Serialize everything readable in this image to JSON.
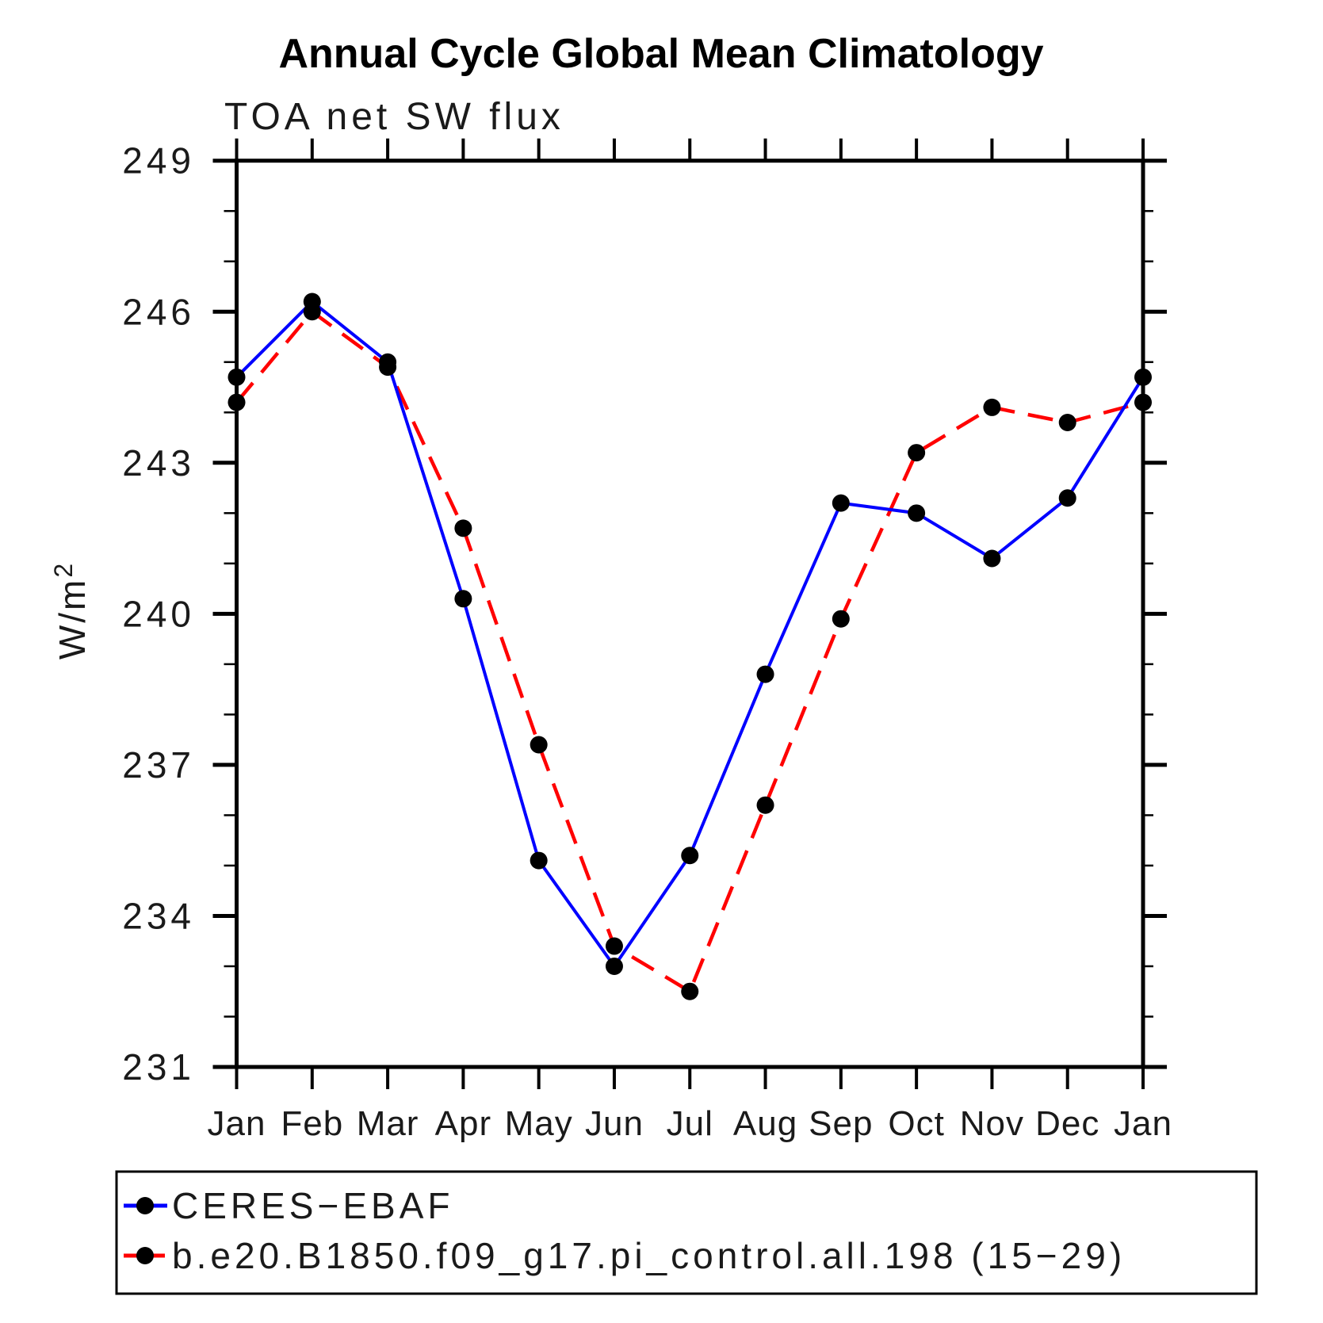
{
  "page": {
    "background": "#ffffff",
    "axis_color": "#000000",
    "text_color": "#1a1a1a"
  },
  "header": {
    "title": "Annual Cycle Global Mean Climatology",
    "subtitle": "TOA net SW flux"
  },
  "y_axis_label": {
    "base": "W/m",
    "exponent": "2"
  },
  "chart_data": {
    "type": "line",
    "title": "Annual Cycle Global Mean Climatology",
    "subtitle": "TOA net SW flux",
    "xlabel": "",
    "ylabel": "W/m^2",
    "categories": [
      "Jan",
      "Feb",
      "Mar",
      "Apr",
      "May",
      "Jun",
      "Jul",
      "Aug",
      "Sep",
      "Oct",
      "Nov",
      "Dec",
      "Jan"
    ],
    "ylim": [
      231,
      249
    ],
    "y_ticks": [
      231,
      234,
      237,
      240,
      243,
      246,
      249
    ],
    "y_minor_tick_step": 1,
    "grid": false,
    "legend_position": "bottom-outside",
    "marker": "filled-circle",
    "marker_color": "#000000",
    "series": [
      {
        "name": "CERES−EBAF",
        "line_color": "#0000ff",
        "line_style": "solid",
        "values": [
          244.7,
          246.2,
          245.0,
          240.3,
          235.1,
          233.0,
          235.2,
          238.8,
          242.2,
          242.0,
          241.1,
          242.3,
          244.7
        ]
      },
      {
        "name": "b.e20.B1850.f09_g17.pi_control.all.198 (15−29)",
        "line_color": "#ff0000",
        "line_style": "dashed",
        "values": [
          244.2,
          246.0,
          244.9,
          241.7,
          237.4,
          233.4,
          232.5,
          236.2,
          239.9,
          243.2,
          244.1,
          243.8,
          244.2
        ]
      }
    ]
  }
}
